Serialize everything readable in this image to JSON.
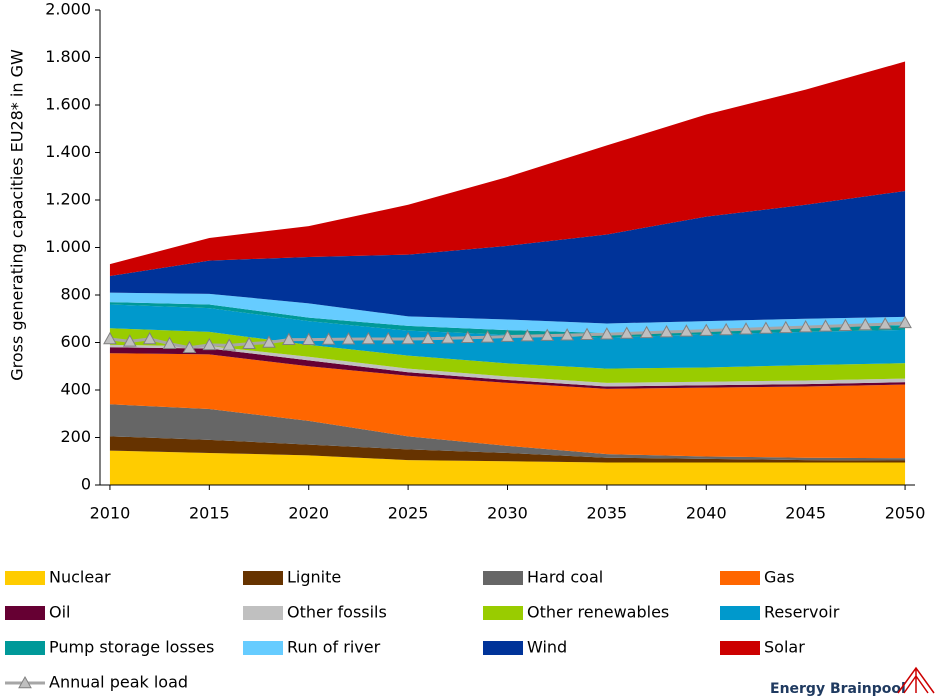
{
  "chart_data": {
    "type": "stacked_area",
    "y_label": "Gross generating capacities EU28* in GW",
    "logo": "Energy Brainpool",
    "x": [
      2010,
      2015,
      2020,
      2025,
      2030,
      2035,
      2040,
      2045,
      2050
    ],
    "xlim": [
      2009.5,
      2050.5
    ],
    "xticks": [
      2010,
      2015,
      2020,
      2025,
      2030,
      2035,
      2040,
      2045,
      2050
    ],
    "ylim": [
      0,
      2000
    ],
    "yticks": [
      0,
      200,
      400,
      600,
      800,
      {
        "value": 1000,
        "label": "1.000"
      },
      {
        "value": 1200,
        "label": "1.200"
      },
      {
        "value": 1400,
        "label": "1.400"
      },
      {
        "value": 1600,
        "label": "1.600"
      },
      {
        "value": 1800,
        "label": "1.800"
      },
      {
        "value": 2000,
        "label": "2.000"
      }
    ],
    "series": [
      {
        "name": "Nuclear",
        "color": "#ffcc00",
        "values": [
          145,
          135,
          125,
          105,
          100,
          95,
          95,
          95,
          95
        ]
      },
      {
        "name": "Lignite",
        "color": "#663300",
        "values": [
          60,
          55,
          45,
          45,
          35,
          20,
          15,
          10,
          8
        ]
      },
      {
        "name": "Hard coal",
        "color": "#666666",
        "values": [
          135,
          130,
          100,
          55,
          30,
          15,
          10,
          10,
          10
        ]
      },
      {
        "name": "Gas",
        "color": "#ff6600",
        "values": [
          215,
          230,
          230,
          255,
          265,
          275,
          290,
          300,
          310
        ]
      },
      {
        "name": "Oil",
        "color": "#660033",
        "values": [
          25,
          25,
          25,
          15,
          12,
          10,
          10,
          10,
          10
        ]
      },
      {
        "name": "Other fossils",
        "color": "#c0c0c0",
        "values": [
          10,
          10,
          15,
          15,
          15,
          15,
          15,
          15,
          15
        ]
      },
      {
        "name": "Other renewables",
        "color": "#99cc00",
        "values": [
          70,
          60,
          50,
          55,
          55,
          60,
          60,
          65,
          65
        ]
      },
      {
        "name": "Reservoir",
        "color": "#0099cc",
        "values": [
          100,
          100,
          100,
          105,
          120,
          130,
          140,
          140,
          140
        ]
      },
      {
        "name": "Pump storage losses",
        "color": "#009999",
        "values": [
          10,
          15,
          15,
          20,
          20,
          20,
          20,
          20,
          20
        ]
      },
      {
        "name": "Run of river",
        "color": "#66ccff",
        "values": [
          40,
          45,
          60,
          40,
          45,
          40,
          35,
          35,
          35
        ]
      },
      {
        "name": "Wind",
        "color": "#003399",
        "values": [
          70,
          140,
          195,
          260,
          310,
          375,
          440,
          480,
          530
        ]
      },
      {
        "name": "Solar",
        "color": "#cc0000",
        "values": [
          50,
          95,
          130,
          210,
          290,
          375,
          430,
          485,
          545
        ]
      }
    ],
    "line_series": {
      "name": "Annual peak load",
      "color": "#a6a6a6",
      "x": [
        2010,
        2011,
        2012,
        2013,
        2014,
        2015,
        2016,
        2017,
        2018,
        2019,
        2020,
        2021,
        2022,
        2023,
        2024,
        2025,
        2026,
        2027,
        2028,
        2029,
        2030,
        2031,
        2032,
        2033,
        2034,
        2035,
        2036,
        2037,
        2038,
        2039,
        2040,
        2041,
        2042,
        2043,
        2044,
        2045,
        2046,
        2047,
        2048,
        2049,
        2050
      ],
      "values": [
        615,
        605,
        615,
        595,
        578,
        590,
        588,
        595,
        600,
        612,
        612,
        613,
        614,
        615,
        615,
        615,
        616,
        618,
        620,
        622,
        625,
        627,
        629,
        631,
        633,
        635,
        638,
        641,
        644,
        647,
        650,
        653,
        656,
        659,
        662,
        665,
        668,
        671,
        674,
        677,
        683
      ]
    }
  }
}
